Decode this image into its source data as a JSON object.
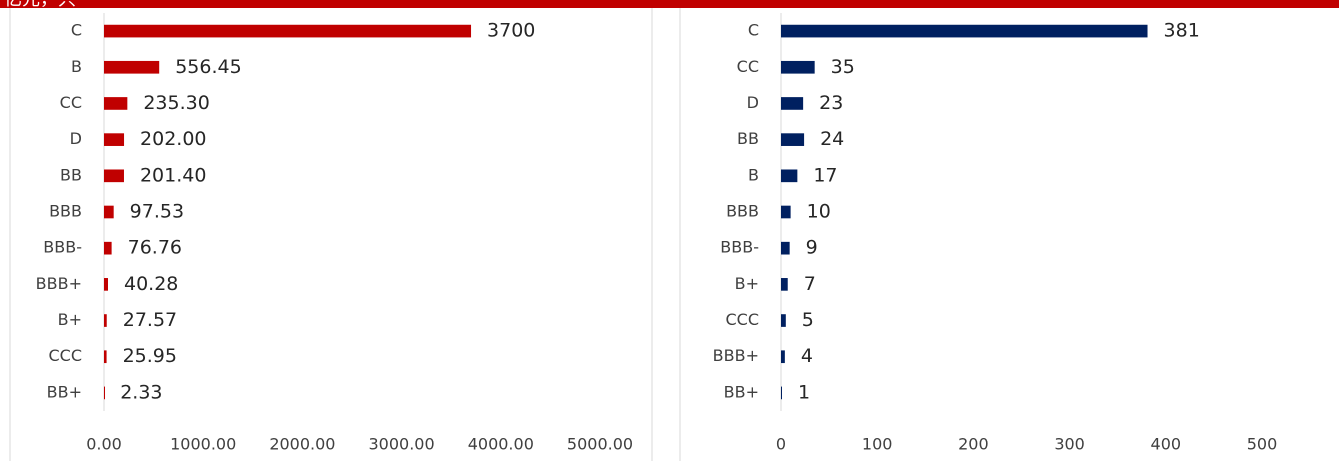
{
  "header": {
    "title": "亿元，只"
  },
  "chart_data": [
    {
      "type": "bar",
      "orientation": "horizontal",
      "color": "#c00000",
      "categories": [
        "C",
        "B",
        "CC",
        "D",
        "BB",
        "BBB",
        "BBB-",
        "BBB+",
        "B+",
        "CCC",
        "BB+"
      ],
      "values": [
        3700,
        556.45,
        235.3,
        202,
        201.4,
        97.53,
        76.76,
        40.28,
        27.57,
        25.95,
        2.33
      ],
      "value_labels": [
        "3700",
        "556.45",
        "235.30",
        "202.00",
        "201.40",
        "97.53",
        "76.76",
        "40.28",
        "27.57",
        "25.95",
        "2.33"
      ],
      "xlim": [
        0,
        5000
      ],
      "xticks": [
        {
          "value": 0,
          "label": "0.00"
        },
        {
          "value": 1000,
          "label": "1000.00"
        },
        {
          "value": 2000,
          "label": "2000.00"
        },
        {
          "value": 3000,
          "label": "3000.00"
        },
        {
          "value": 4000,
          "label": "4000.00"
        },
        {
          "value": 5000,
          "label": "5000.00"
        }
      ]
    },
    {
      "type": "bar",
      "orientation": "horizontal",
      "color": "#002060",
      "categories": [
        "C",
        "CC",
        "D",
        "BB",
        "B",
        "BBB",
        "BBB-",
        "B+",
        "CCC",
        "BBB+",
        "BB+"
      ],
      "values": [
        381,
        35,
        23,
        24,
        17,
        10,
        9,
        7,
        5,
        4,
        1
      ],
      "xlim": [
        0,
        500
      ],
      "xticks": [
        0,
        100,
        200,
        300,
        400,
        500
      ]
    }
  ]
}
